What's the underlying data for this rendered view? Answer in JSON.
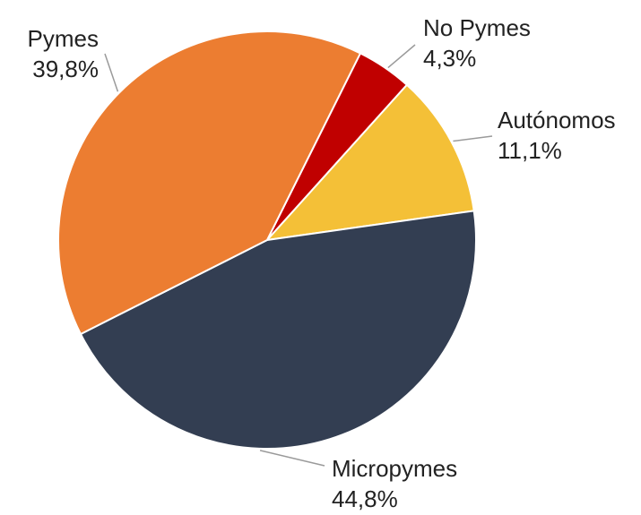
{
  "chart_data": {
    "type": "pie",
    "title": "",
    "legend": "none",
    "slices": [
      {
        "label": "No Pymes",
        "value": 4.3,
        "value_label": "4,3%",
        "color": "#c00000"
      },
      {
        "label": "Autónomos",
        "value": 11.1,
        "value_label": "11,1%",
        "color": "#f4c037"
      },
      {
        "label": "Micropymes",
        "value": 44.8,
        "value_label": "44,8%",
        "color": "#333e52"
      },
      {
        "label": "Pymes",
        "value": 39.8,
        "value_label": "39,8%",
        "color": "#ec7d31"
      }
    ]
  }
}
